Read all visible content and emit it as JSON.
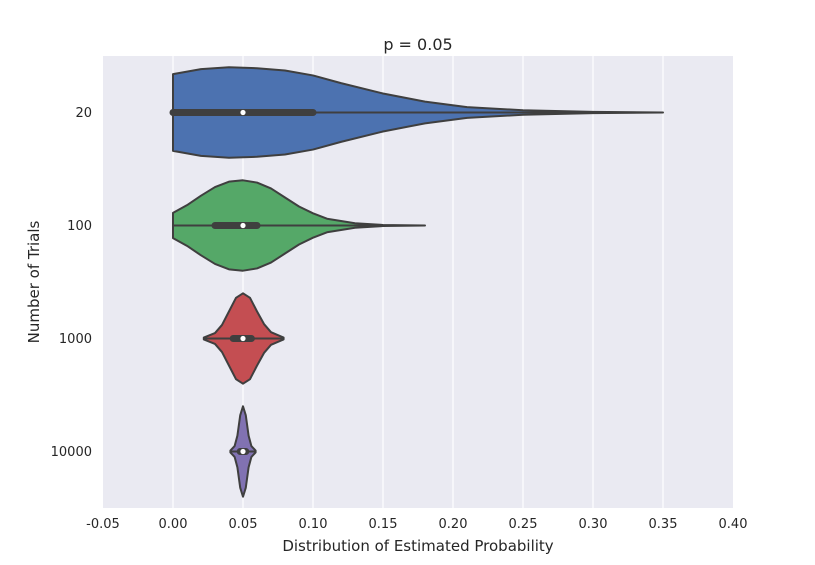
{
  "chart_data": {
    "type": "violin",
    "title": "p = 0.05",
    "xlabel": "Distribution of Estimated Probability",
    "ylabel": "Number of Trials",
    "xlim": [
      -0.05,
      0.4
    ],
    "xticks": [
      "-0.05",
      "0.00",
      "0.05",
      "0.10",
      "0.15",
      "0.20",
      "0.25",
      "0.30",
      "0.35",
      "0.40"
    ],
    "grid": true,
    "categories": [
      "20",
      "100",
      "1000",
      "10000"
    ],
    "series": [
      {
        "category": "20",
        "color": "#4c72b0",
        "min": 0.0,
        "q1": 0.0,
        "median": 0.05,
        "q3": 0.1,
        "max": 0.35,
        "profile": [
          [
            0.0,
            0.85
          ],
          [
            0.02,
            0.96
          ],
          [
            0.04,
            1.0
          ],
          [
            0.06,
            0.98
          ],
          [
            0.08,
            0.93
          ],
          [
            0.1,
            0.82
          ],
          [
            0.12,
            0.65
          ],
          [
            0.15,
            0.42
          ],
          [
            0.18,
            0.24
          ],
          [
            0.21,
            0.12
          ],
          [
            0.25,
            0.05
          ],
          [
            0.3,
            0.015
          ],
          [
            0.35,
            0.0
          ]
        ]
      },
      {
        "category": "100",
        "color": "#55a868",
        "min": 0.0,
        "q1": 0.03,
        "median": 0.05,
        "q3": 0.06,
        "max": 0.18,
        "profile": [
          [
            0.0,
            0.28
          ],
          [
            0.01,
            0.45
          ],
          [
            0.02,
            0.66
          ],
          [
            0.03,
            0.85
          ],
          [
            0.04,
            0.97
          ],
          [
            0.05,
            1.0
          ],
          [
            0.06,
            0.95
          ],
          [
            0.07,
            0.82
          ],
          [
            0.08,
            0.62
          ],
          [
            0.09,
            0.42
          ],
          [
            0.1,
            0.27
          ],
          [
            0.11,
            0.15
          ],
          [
            0.13,
            0.05
          ],
          [
            0.15,
            0.012
          ],
          [
            0.18,
            0.0
          ]
        ]
      },
      {
        "category": "1000",
        "color": "#c44e52",
        "min": 0.022,
        "q1": 0.043,
        "median": 0.05,
        "q3": 0.056,
        "max": 0.079,
        "profile": [
          [
            0.022,
            0.02
          ],
          [
            0.03,
            0.12
          ],
          [
            0.035,
            0.3
          ],
          [
            0.04,
            0.6
          ],
          [
            0.045,
            0.9
          ],
          [
            0.05,
            1.0
          ],
          [
            0.055,
            0.9
          ],
          [
            0.06,
            0.6
          ],
          [
            0.065,
            0.32
          ],
          [
            0.07,
            0.14
          ],
          [
            0.079,
            0.02
          ]
        ]
      },
      {
        "category": "10000",
        "color": "#8172b2",
        "min": 0.041,
        "q1": 0.048,
        "median": 0.05,
        "q3": 0.052,
        "max": 0.059,
        "profile": [
          [
            0.041,
            0.02
          ],
          [
            0.044,
            0.12
          ],
          [
            0.046,
            0.35
          ],
          [
            0.048,
            0.8
          ],
          [
            0.05,
            1.0
          ],
          [
            0.052,
            0.8
          ],
          [
            0.054,
            0.35
          ],
          [
            0.056,
            0.12
          ],
          [
            0.059,
            0.02
          ]
        ]
      }
    ]
  }
}
